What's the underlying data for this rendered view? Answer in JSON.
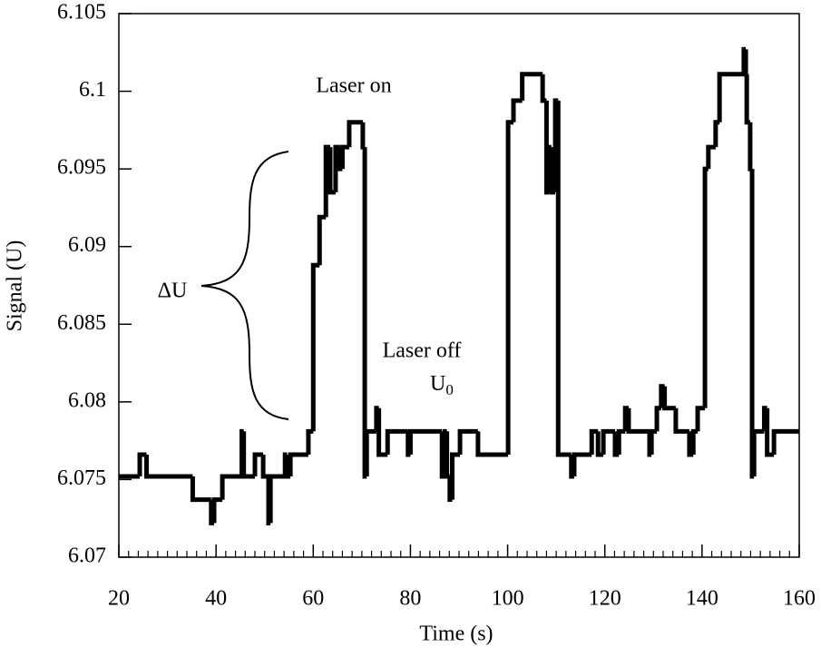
{
  "chart_data": {
    "type": "line",
    "step": true,
    "color": "#000000",
    "xlabel": "Time (s)",
    "ylabel": "Signal (U)",
    "xlim": [
      20,
      160
    ],
    "ylim": [
      6.07,
      6.105
    ],
    "xticks": [
      20,
      40,
      60,
      80,
      100,
      120,
      140,
      160
    ],
    "yticks": [
      6.07,
      6.075,
      6.08,
      6.085,
      6.09,
      6.095,
      6.1,
      6.105
    ],
    "annotations": [
      {
        "text": "Laser on"
      },
      {
        "text": "Laser off"
      },
      {
        "text": "U",
        "subscript": "0"
      },
      {
        "text": "ΔU"
      }
    ],
    "x": [
      20,
      24.3,
      25.7,
      35.2,
      39,
      39.6,
      41.3,
      45.3,
      45.7,
      48,
      49.7,
      50.8,
      51.2,
      54.2,
      54.6,
      55.3,
      59,
      60,
      61.3,
      62.6,
      63.5,
      64.6,
      65.5,
      66,
      67.4,
      70.2,
      70.6,
      71,
      73,
      73.5,
      75.3,
      79.5,
      80,
      86.5,
      87.1,
      87.5,
      88.1,
      88.6,
      90.2,
      93.9,
      100.1,
      101.2,
      103,
      107.2,
      108,
      108.5,
      109,
      109.8,
      110.4,
      113.1,
      113.7,
      117.3,
      118.6,
      119.7,
      122.1,
      122.9,
      124.2,
      124.9,
      129.2,
      129.6,
      130.7,
      131.6,
      132.3,
      134.6,
      137.4,
      138.2,
      139.1,
      140.6,
      141.3,
      142.8,
      143.6,
      148.6,
      149,
      149.2,
      149.9,
      150.3,
      150.7,
      152.8,
      153.4,
      154.8
    ],
    "values": [
      6.0752,
      6.0766,
      6.0752,
      6.0737,
      6.0722,
      6.0737,
      6.0752,
      6.0781,
      6.0752,
      6.0766,
      6.0752,
      6.0722,
      6.0752,
      6.0766,
      6.0752,
      6.0766,
      6.0781,
      6.0888,
      6.0919,
      6.0964,
      6.0935,
      6.0964,
      6.095,
      6.0964,
      6.098,
      6.0964,
      6.0752,
      6.0781,
      6.0796,
      6.0766,
      6.0781,
      6.0766,
      6.0781,
      6.0752,
      6.0781,
      6.0752,
      6.0737,
      6.0766,
      6.0781,
      6.0766,
      6.098,
      6.0994,
      6.1011,
      6.0994,
      6.0935,
      6.0964,
      6.0935,
      6.0994,
      6.0766,
      6.0752,
      6.0766,
      6.0781,
      6.0766,
      6.0781,
      6.0766,
      6.0781,
      6.0796,
      6.0781,
      6.0766,
      6.0781,
      6.0796,
      6.081,
      6.0796,
      6.0781,
      6.0766,
      6.0781,
      6.0796,
      6.095,
      6.0964,
      6.098,
      6.1011,
      6.1027,
      6.1011,
      6.098,
      6.095,
      6.0752,
      6.0781,
      6.0796,
      6.0766,
      6.0781
    ]
  }
}
